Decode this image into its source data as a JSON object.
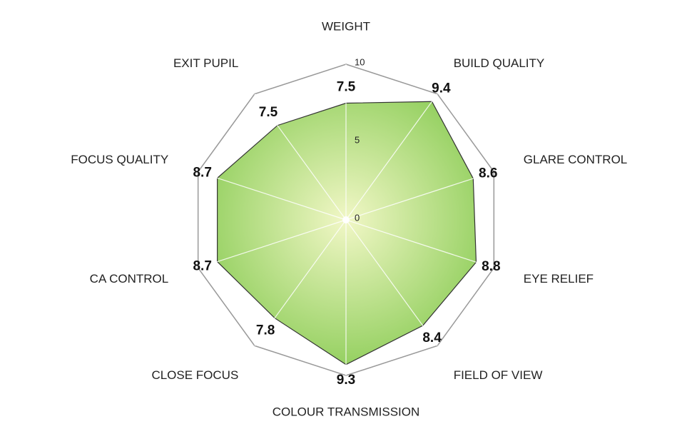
{
  "chart_data": {
    "type": "radar",
    "categories": [
      "WEIGHT",
      "BUILD QUALITY",
      "GLARE CONTROL",
      "EYE RELIEF",
      "FIELD OF VIEW",
      "COLOUR TRANSMISSION",
      "CLOSE FOCUS",
      "CA CONTROL",
      "FOCUS QUALITY",
      "EXIT PUPIL"
    ],
    "values": [
      7.5,
      9.4,
      8.6,
      8.8,
      8.4,
      9.3,
      7.8,
      8.7,
      8.7,
      7.5
    ],
    "ylim": [
      0,
      10
    ],
    "yticks": [
      0,
      5,
      10
    ],
    "color": "#92cf5e",
    "grid": true
  }
}
